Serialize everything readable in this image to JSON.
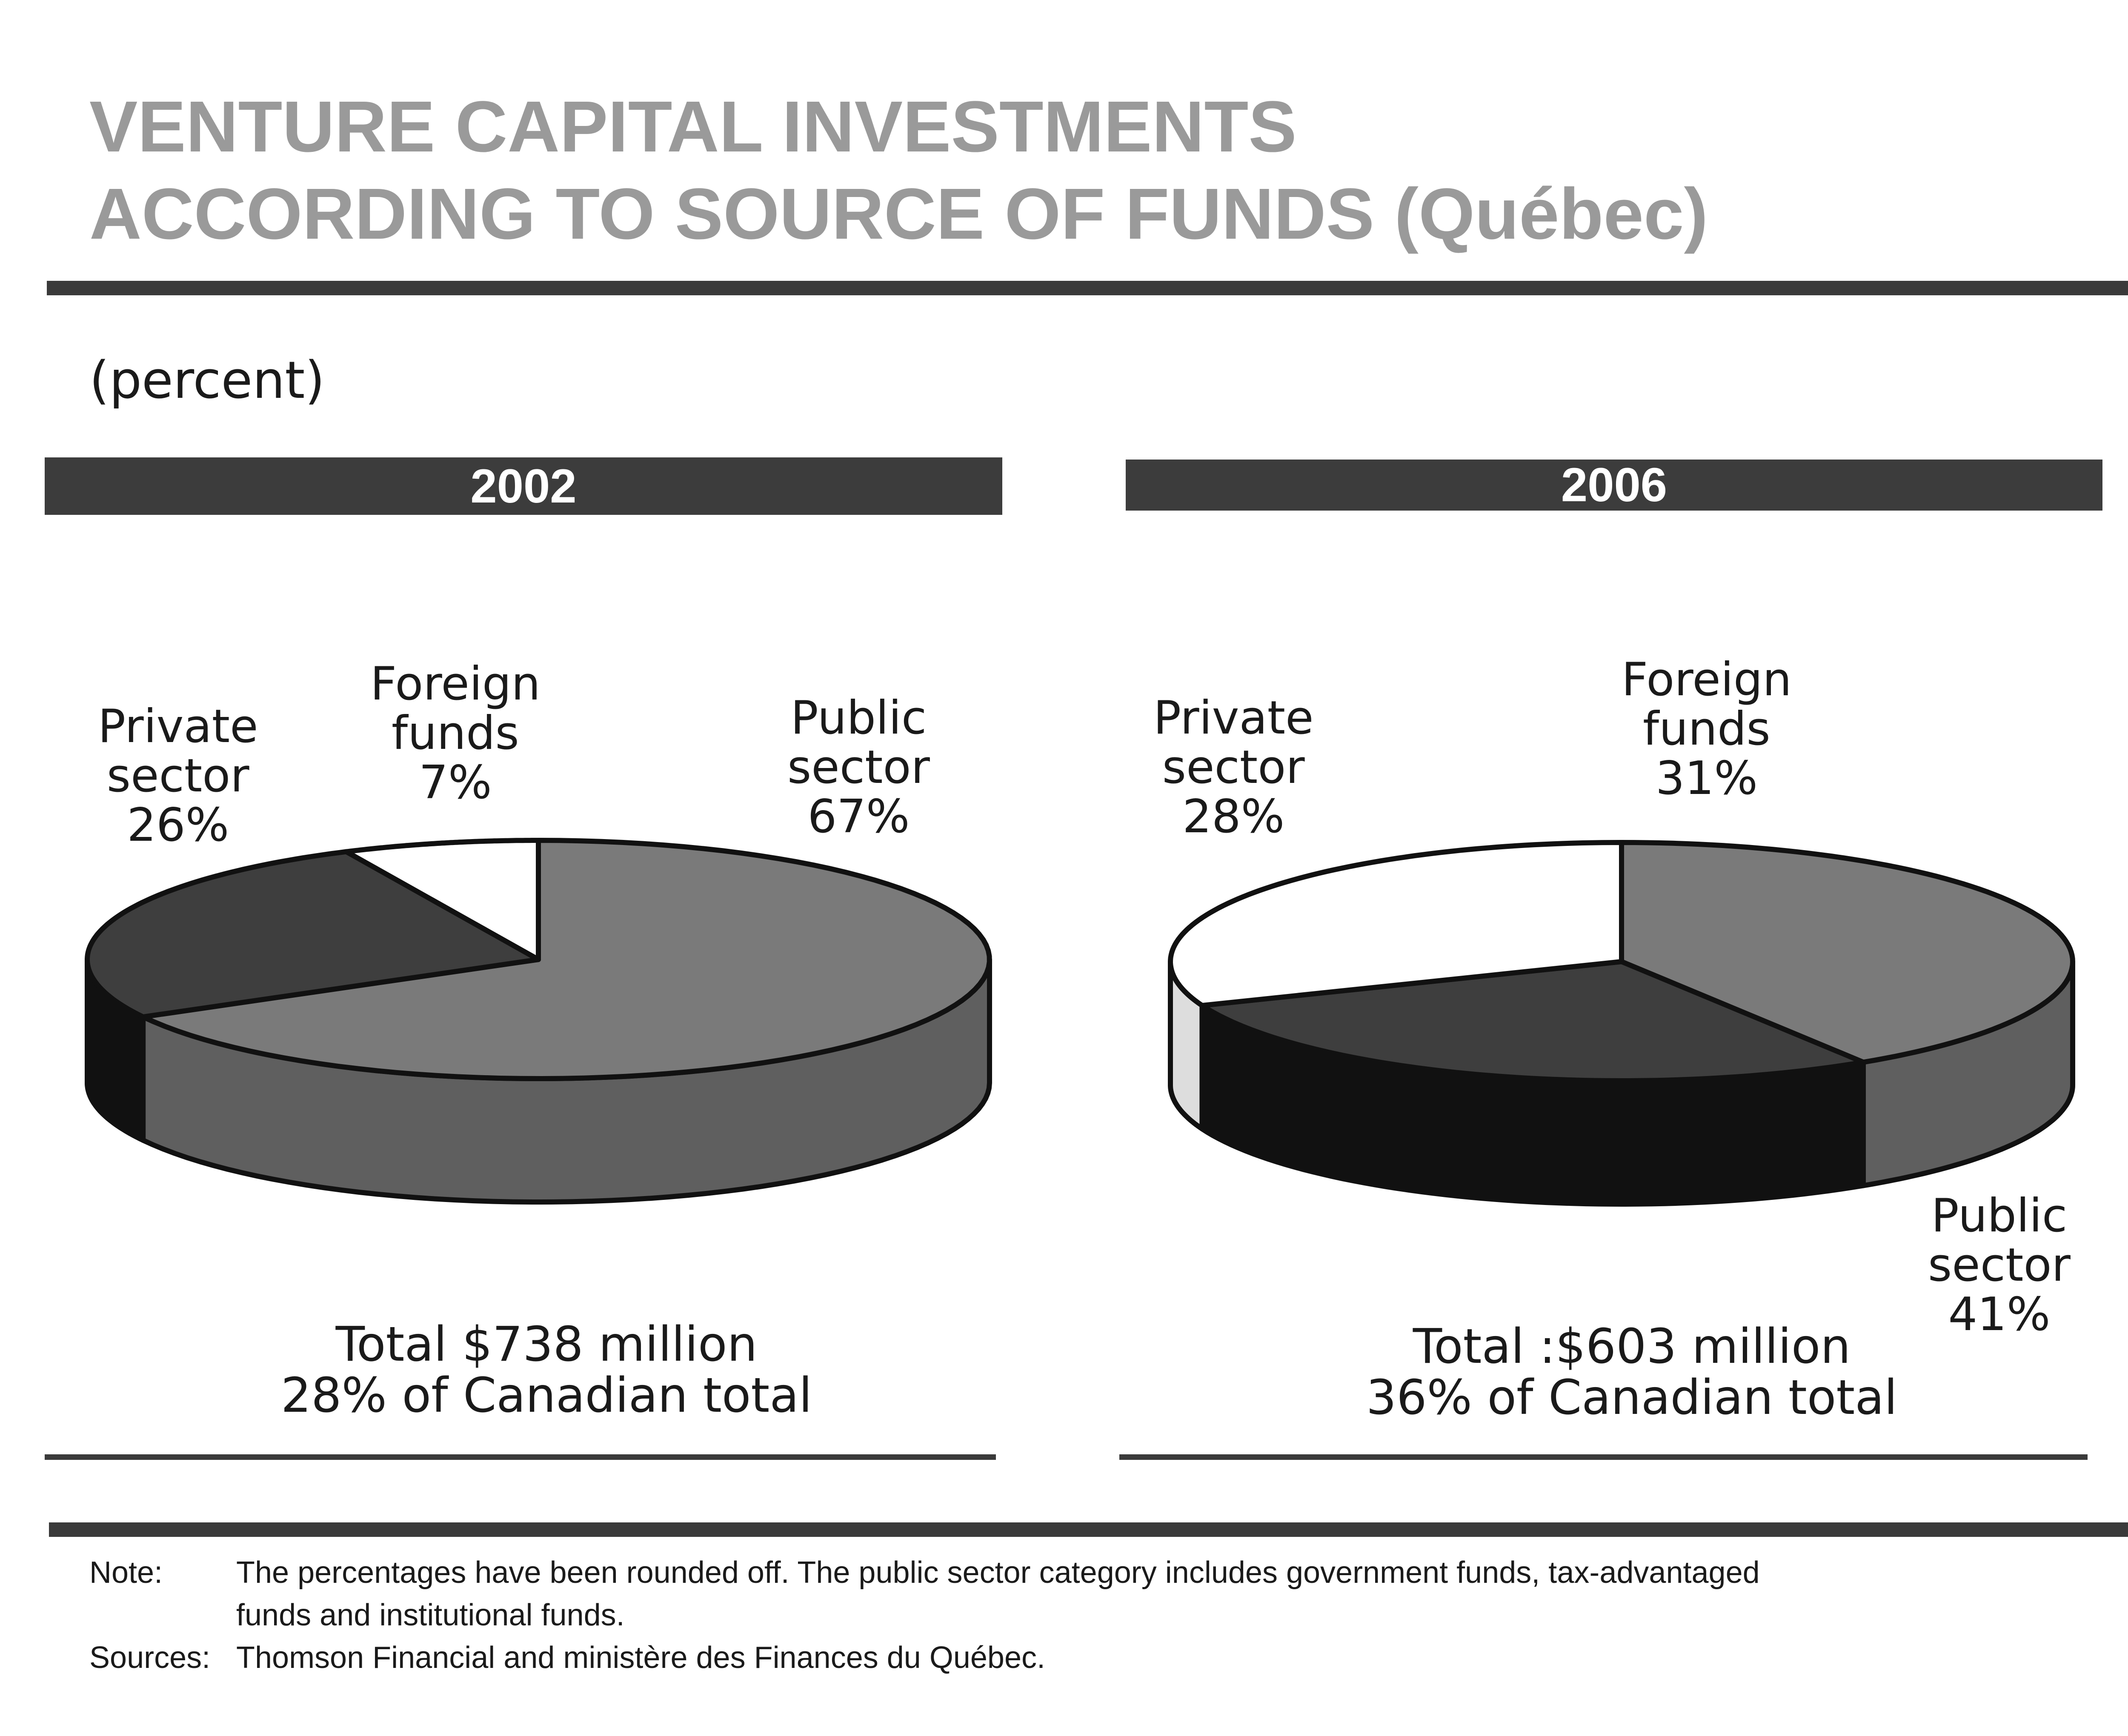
{
  "title_line1": "VENTURE CAPITAL INVESTMENTS",
  "title_line2": "ACCORDING TO SOURCE OF FUNDS (Québec)",
  "unit_label": "(percent)",
  "colors": {
    "public_sector": "#7a7a7a",
    "private_sector": "#3e3e3e",
    "foreign_funds": "#ffffff",
    "outline": "#111111"
  },
  "chart_data": [
    {
      "type": "pie",
      "title": "2002",
      "slices": [
        {
          "name": "Public sector",
          "value": 67
        },
        {
          "name": "Private sector",
          "value": 26
        },
        {
          "name": "Foreign funds",
          "value": 7
        }
      ],
      "labels": {
        "private": [
          "Private",
          "sector",
          "26%"
        ],
        "foreign": [
          "Foreign",
          "funds",
          "7%"
        ],
        "public": [
          "Public",
          "sector",
          "67%"
        ]
      },
      "total_line1": "Total   $738 million",
      "total_line2": "28% of Canadian total"
    },
    {
      "type": "pie",
      "title": "2006",
      "slices": [
        {
          "name": "Public sector",
          "value": 41
        },
        {
          "name": "Private sector",
          "value": 28
        },
        {
          "name": "Foreign funds",
          "value": 31
        }
      ],
      "labels": {
        "private": [
          "Private",
          "sector",
          "28%"
        ],
        "foreign": [
          "Foreign",
          "funds",
          "31%"
        ],
        "public": [
          "Public",
          "sector",
          "41%"
        ]
      },
      "total_line1": "Total :$603 million",
      "total_line2": "36% of Canadian total"
    }
  ],
  "notes": {
    "note_label": "Note:",
    "note_line1": "The percentages have been rounded off.  The public sector category includes government funds, tax-advantaged",
    "note_line2": "funds and institutional funds.",
    "sources_label": "Sources:",
    "sources_text": "Thomson Financial and ministère des Finances du Québec."
  }
}
